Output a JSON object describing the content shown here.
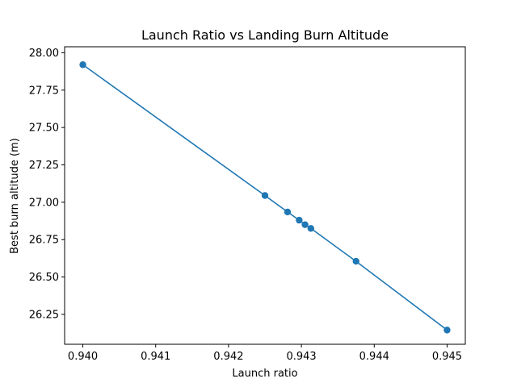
{
  "colors": {
    "series": "#1f77b4",
    "axes": "#000000",
    "background": "#ffffff"
  },
  "chart_data": {
    "type": "line",
    "title": "Launch Ratio vs Landing Burn Altitude",
    "xlabel": "Launch ratio",
    "ylabel": "Best burn altitude (m)",
    "xlim": [
      0.93975,
      0.94525
    ],
    "ylim": [
      26.05,
      28.04
    ],
    "xticks": [
      0.94,
      0.941,
      0.942,
      0.943,
      0.944,
      0.945
    ],
    "xtick_labels": [
      "0.940",
      "0.941",
      "0.942",
      "0.943",
      "0.944",
      "0.945"
    ],
    "yticks": [
      26.25,
      26.5,
      26.75,
      27.0,
      27.25,
      27.5,
      27.75,
      28.0
    ],
    "ytick_labels": [
      "26.25",
      "26.50",
      "26.75",
      "27.00",
      "27.25",
      "27.50",
      "27.75",
      "28.00"
    ],
    "grid": false,
    "markers": true,
    "series": [
      {
        "x": [
          0.94,
          0.9425,
          0.94281,
          0.94297,
          0.94305,
          0.94313,
          0.94375,
          0.945
        ],
        "y": [
          27.92,
          27.045,
          26.935,
          26.88,
          26.85,
          26.825,
          26.605,
          26.145
        ]
      }
    ]
  }
}
